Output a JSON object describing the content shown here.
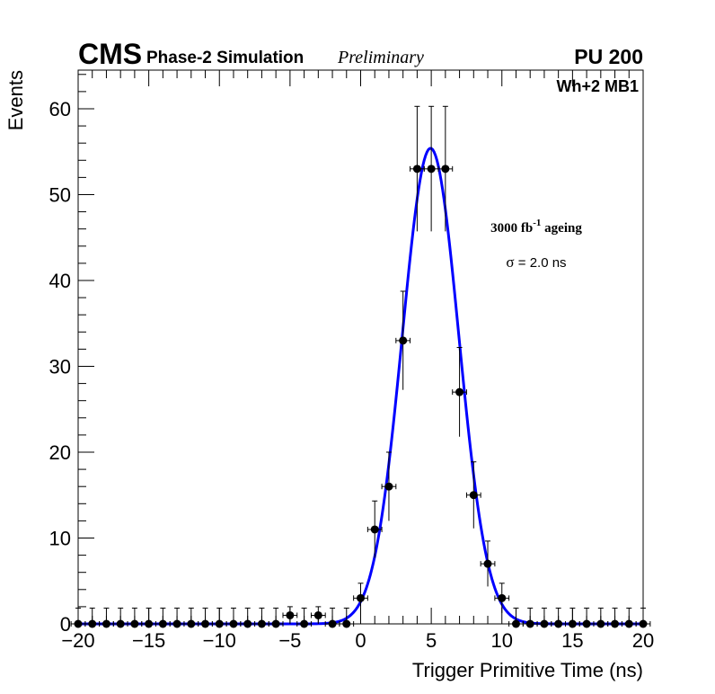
{
  "header": {
    "experiment": "CMS",
    "subtitle": "Phase-2 Simulation",
    "status": "Preliminary",
    "pileup": "PU 200"
  },
  "chart_data": {
    "type": "scatter",
    "title": "",
    "xlabel": "Trigger Primitive Time (ns)",
    "ylabel": "Events",
    "xlim": [
      -20,
      20
    ],
    "ylim": [
      0,
      64.5
    ],
    "x_ticks": [
      -20,
      -15,
      -10,
      -5,
      0,
      5,
      10,
      15,
      20
    ],
    "x_tick_labels": [
      "−20",
      "−15",
      "−10",
      "−5",
      "0",
      "5",
      "10",
      "15",
      "20"
    ],
    "y_ticks": [
      0,
      10,
      20,
      30,
      40,
      50,
      60
    ],
    "y_tick_labels": [
      "0",
      "10",
      "20",
      "30",
      "40",
      "50",
      "60"
    ],
    "grid": false,
    "colors": {
      "points": "#000000",
      "fit": "#0000ff"
    },
    "annotations": {
      "category": "Wh+2 MB1",
      "ageing_prefix": "3000 fb",
      "ageing_exponent": "-1",
      "ageing_suffix": " ageing",
      "sigma_symbol": "σ",
      "sigma_text": " = 2.0 ns"
    },
    "series": [
      {
        "name": "Simulation",
        "kind": "points",
        "x": [
          -20,
          -19,
          -18,
          -17,
          -16,
          -15,
          -14,
          -13,
          -12,
          -11,
          -10,
          -9,
          -8,
          -7,
          -6,
          -5,
          -4,
          -3,
          -2,
          -1,
          0,
          1,
          2,
          3,
          4,
          5,
          6,
          7,
          8,
          9,
          10,
          11,
          12,
          13,
          14,
          15,
          16,
          17,
          18,
          19,
          20
        ],
        "y": [
          0,
          0,
          0,
          0,
          0,
          0,
          0,
          0,
          0,
          0,
          0,
          0,
          0,
          0,
          0,
          1,
          0,
          1,
          0,
          0,
          3,
          11,
          16,
          33,
          53,
          53,
          53,
          27,
          15,
          7,
          3,
          0,
          0,
          0,
          0,
          0,
          0,
          0,
          0,
          0,
          0
        ],
        "x_err": 0.5
      },
      {
        "name": "Gaussian fit",
        "kind": "fit",
        "function": "gaussian",
        "amplitude": 55.4,
        "mean": 4.95,
        "sigma": 2.0,
        "range": [
          -20,
          20
        ]
      }
    ]
  }
}
